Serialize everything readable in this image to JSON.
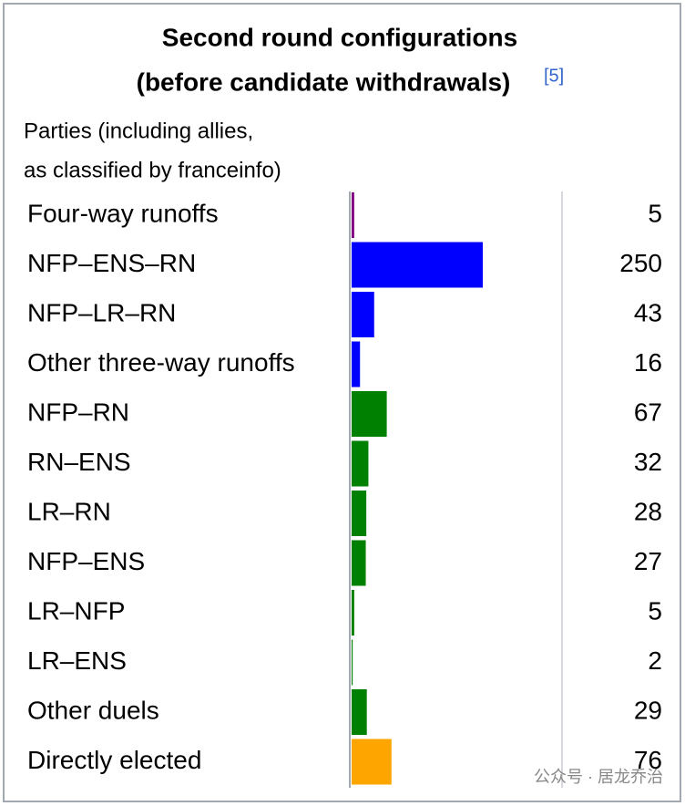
{
  "chart_data": {
    "type": "bar",
    "title": [
      "Second round configurations",
      "(before candidate withdrawals)"
    ],
    "title_note": "[5]",
    "header": [
      "Parties (including allies,",
      "as classified by franceinfo)"
    ],
    "categories": [
      "Four-way runoffs",
      "NFP–ENS–RN",
      "NFP–LR–RN",
      "Other three-way runoffs",
      "NFP–RN",
      "RN–ENS",
      "LR–RN",
      "NFP–ENS",
      "LR–NFP",
      "LR–ENS",
      "Other duels",
      "Directly elected"
    ],
    "values": [
      5,
      250,
      43,
      16,
      67,
      32,
      28,
      27,
      5,
      2,
      29,
      76
    ],
    "colors": [
      "#800080",
      "#0000ff",
      "#0000ff",
      "#0000ff",
      "#008000",
      "#008000",
      "#008000",
      "#008000",
      "#008000",
      "#008000",
      "#008000",
      "#ffa500"
    ],
    "watermark": "公众号 · 居龙乔治"
  }
}
